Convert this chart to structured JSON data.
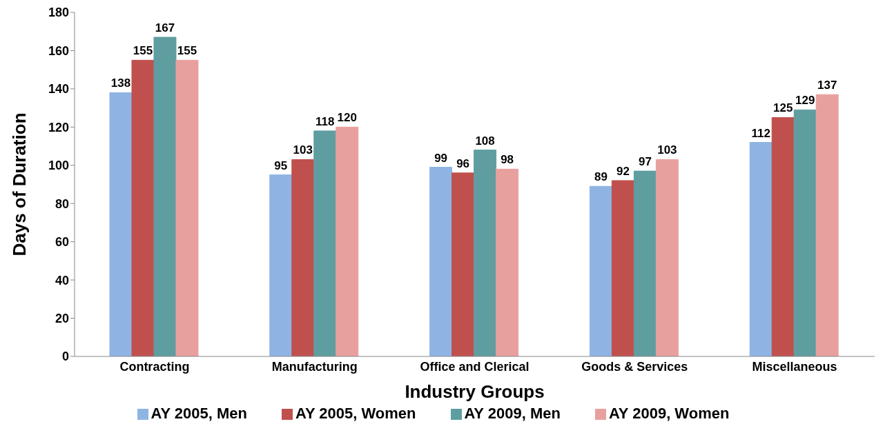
{
  "chart_data": {
    "type": "bar",
    "xlabel": "Industry Groups",
    "ylabel": "Days of Duration",
    "categories": [
      "Contracting",
      "Manufacturing",
      "Office and Clerical",
      "Goods & Services",
      "Miscellaneous"
    ],
    "series": [
      {
        "name": "AY 2005, Men",
        "color": "#8eb4e3",
        "values": [
          138,
          95,
          99,
          89,
          112
        ]
      },
      {
        "name": "AY 2005, Women",
        "color": "#c0504d",
        "values": [
          155,
          103,
          96,
          92,
          125
        ]
      },
      {
        "name": "AY 2009, Men",
        "color": "#5f9ea0",
        "values": [
          167,
          118,
          108,
          97,
          129
        ]
      },
      {
        "name": "AY 2009, Women",
        "color": "#e8a09e",
        "values": [
          155,
          120,
          98,
          103,
          137
        ]
      }
    ],
    "ylim": [
      0,
      180
    ],
    "yticks": [
      0,
      20,
      40,
      60,
      80,
      100,
      120,
      140,
      160,
      180
    ],
    "grid": false,
    "legend": "bottom",
    "data_labels": true
  }
}
